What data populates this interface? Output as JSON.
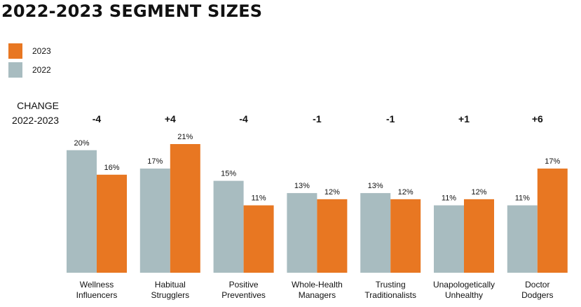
{
  "title": "2022-2023 SEGMENT SIZES",
  "legend": [
    {
      "label": "2023",
      "color": "#E87722"
    },
    {
      "label": "2022",
      "color": "#A8BCC0"
    }
  ],
  "change_header": {
    "line1": "CHANGE",
    "line2": "2022-2023"
  },
  "chart_data": {
    "type": "bar",
    "title": "2022-2023 SEGMENT SIZES",
    "categories": [
      [
        "Wellness",
        "Influencers"
      ],
      [
        "Habitual",
        "Strugglers"
      ],
      [
        "Positive",
        "Preventives"
      ],
      [
        "Whole-Health",
        "Managers"
      ],
      [
        "Trusting",
        "Traditionalists"
      ],
      [
        "Unapologetically",
        "Unhealthy"
      ],
      [
        "Doctor",
        "Dodgers"
      ]
    ],
    "series": [
      {
        "name": "2022",
        "color": "#A8BCC0",
        "values": [
          20,
          17,
          15,
          13,
          13,
          11,
          11
        ],
        "labels": [
          "20%",
          "17%",
          "15%",
          "13%",
          "13%",
          "11%",
          "11%"
        ]
      },
      {
        "name": "2023",
        "color": "#E87722",
        "values": [
          16,
          21,
          11,
          12,
          12,
          12,
          17
        ],
        "labels": [
          "16%",
          "21%",
          "11%",
          "12%",
          "12%",
          "12%",
          "17%"
        ]
      }
    ],
    "change": [
      "-4",
      "+4",
      "-4",
      "-1",
      "-1",
      "+1",
      "+6"
    ],
    "unit": "%",
    "ylim": [
      0,
      21
    ],
    "grid": false,
    "legend_position": "top-left"
  }
}
